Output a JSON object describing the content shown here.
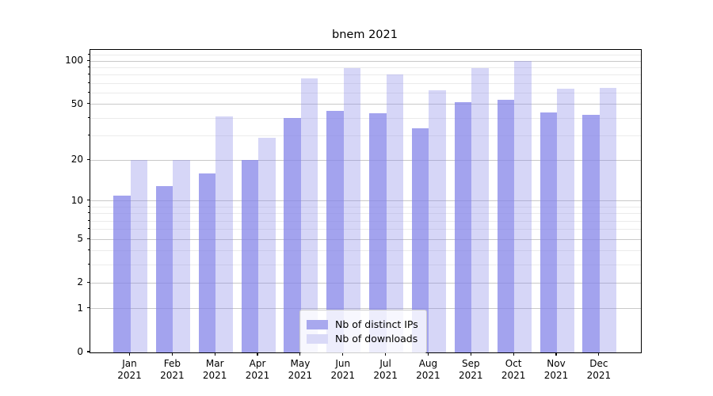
{
  "title": "bnem 2021",
  "legend": {
    "items": [
      {
        "label": "Nb of distinct IPs",
        "series": "distinct_ips"
      },
      {
        "label": "Nb of downloads",
        "series": "downloads"
      }
    ]
  },
  "y_axis": {
    "scale": "log1p",
    "major_ticks": [
      100,
      50,
      20,
      10,
      5,
      2,
      1,
      0
    ],
    "tick_labels": [
      "100",
      "50",
      "20",
      "10",
      "5",
      "2",
      "1",
      "0"
    ],
    "minor_ticks": [
      3,
      4,
      6,
      7,
      8,
      9,
      30,
      40,
      60,
      70,
      80,
      90,
      110
    ]
  },
  "x_axis": {
    "ticks": [
      {
        "month": "Jan",
        "year": "2021"
      },
      {
        "month": "Feb",
        "year": "2021"
      },
      {
        "month": "Mar",
        "year": "2021"
      },
      {
        "month": "Apr",
        "year": "2021"
      },
      {
        "month": "May",
        "year": "2021"
      },
      {
        "month": "Jun",
        "year": "2021"
      },
      {
        "month": "Jul",
        "year": "2021"
      },
      {
        "month": "Aug",
        "year": "2021"
      },
      {
        "month": "Sep",
        "year": "2021"
      },
      {
        "month": "Oct",
        "year": "2021"
      },
      {
        "month": "Nov",
        "year": "2021"
      },
      {
        "month": "Dec",
        "year": "2021"
      }
    ]
  },
  "chart_data": {
    "type": "bar",
    "title": "bnem 2021",
    "categories": [
      "Jan 2021",
      "Feb 2021",
      "Mar 2021",
      "Apr 2021",
      "May 2021",
      "Jun 2021",
      "Jul 2021",
      "Aug 2021",
      "Sep 2021",
      "Oct 2021",
      "Nov 2021",
      "Dec 2021"
    ],
    "series": [
      {
        "name": "Nb of distinct IPs",
        "values": [
          11,
          13,
          16,
          20,
          40,
          45,
          43,
          34,
          52,
          54,
          44,
          42
        ]
      },
      {
        "name": "Nb of downloads",
        "values": [
          20,
          20,
          41,
          29,
          76,
          90,
          81,
          63,
          90,
          100,
          64,
          65
        ]
      }
    ],
    "xlabel": "",
    "ylabel": "",
    "yscale": "log1p",
    "ylim": [
      0,
      120
    ],
    "ytick_values": [
      0,
      1,
      2,
      5,
      10,
      20,
      50,
      100
    ],
    "grid": "both",
    "legend_position": "lower center"
  },
  "colors": {
    "bar_base_rgb": "134,134,232",
    "bar_dark_alpha": 0.76,
    "bar_light_alpha": 0.34,
    "bar_dark_hex": "#a8a8ee",
    "bar_light_hex": "#d9d9f7",
    "grid_major": "#c9c9c9",
    "grid_minor": "#ebebeb",
    "spine": "#000000"
  }
}
